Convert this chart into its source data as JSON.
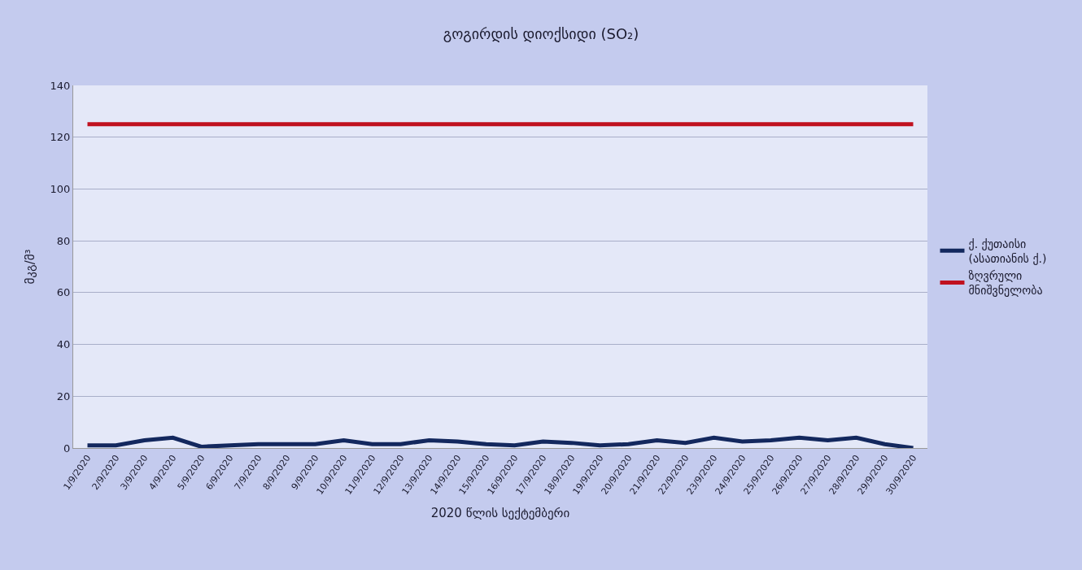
{
  "chart_data": {
    "type": "line",
    "title": "გოგირდის დიოქსიდი (SO₂)",
    "xlabel": "2020 წლის სექტემბერი",
    "ylabel": "მკგ/მ³",
    "categories": [
      "1/9/2020",
      "2/9/2020",
      "3/9/2020",
      "4/9/2020",
      "5/9/2020",
      "6/9/2020",
      "7/9/2020",
      "8/9/2020",
      "9/9/2020",
      "10/9/2020",
      "11/9/2020",
      "12/9/2020",
      "13/9/2020",
      "14/9/2020",
      "15/9/2020",
      "16/9/2020",
      "17/9/2020",
      "18/9/2020",
      "19/9/2020",
      "20/9/2020",
      "21/9/2020",
      "22/9/2020",
      "23/9/2020",
      "24/9/2020",
      "25/9/2020",
      "26/9/2020",
      "27/9/2020",
      "28/9/2020",
      "29/9/2020",
      "30/9/2020"
    ],
    "series": [
      {
        "name": "ქ. ქუთაისი (ასათიანის ქ.)",
        "color": "#13285e",
        "values": [
          1,
          1,
          3,
          4,
          0.5,
          1,
          1.5,
          1.5,
          1.5,
          3,
          1.5,
          1.5,
          3,
          2.5,
          1.5,
          1,
          2.5,
          2,
          1,
          1.5,
          3,
          2,
          4,
          2.5,
          3,
          4,
          3,
          4,
          1.5,
          0
        ]
      },
      {
        "name": "ზღვრული მნიშვნელობა",
        "color": "#c0111f",
        "values": [
          125,
          125,
          125,
          125,
          125,
          125,
          125,
          125,
          125,
          125,
          125,
          125,
          125,
          125,
          125,
          125,
          125,
          125,
          125,
          125,
          125,
          125,
          125,
          125,
          125,
          125,
          125,
          125,
          125,
          125
        ]
      }
    ],
    "ylim": [
      0,
      140
    ],
    "yticks": [
      0,
      20,
      40,
      60,
      80,
      100,
      120,
      140
    ],
    "grid": "y",
    "legend": "right",
    "marker": "none",
    "line_style": "solid"
  }
}
